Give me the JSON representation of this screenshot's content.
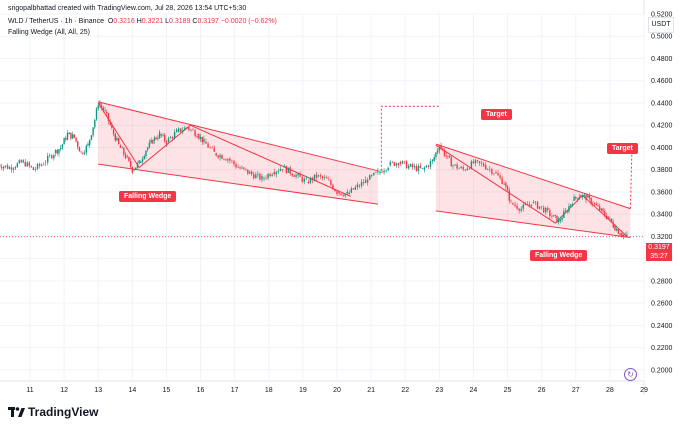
{
  "header": {
    "caption": "srigopalbhattad created with TradingView.com, Jul 28, 2026 13:54 UTC+5:30",
    "symbol": "WLD / TetherUS · 1h · Binance",
    "o_label": "O",
    "o_value": "0.3216",
    "h_label": "H",
    "h_value": "0.3221",
    "l_label": "L",
    "l_value": "0.3189",
    "c_label": "C",
    "c_value": "0.3197",
    "change": "−0.0020 (−0.62%)",
    "indicator": "Falling Wedge (All, All, 25)"
  },
  "currency": "USDT",
  "price_badge": {
    "price": "0.3197",
    "countdown": "35:27"
  },
  "labels": {
    "wedge1": "Falling Wedge",
    "wedge2": "Falling Wedge",
    "target1": "Target",
    "target2": "Target"
  },
  "brand": "TradingView",
  "colors": {
    "up": "#089981",
    "down": "#f23645",
    "wedge_fill": "#f23645",
    "grid": "#f0f3fa"
  },
  "chart_data": {
    "type": "candlestick",
    "title": "WLD / TetherUS · 1h · Binance",
    "xlabel": "",
    "ylabel": "",
    "ylim": [
      0.19,
      0.52
    ],
    "y_ticks": [
      0.2,
      0.22,
      0.24,
      0.26,
      0.28,
      0.3,
      0.32,
      0.34,
      0.36,
      0.38,
      0.4,
      0.42,
      0.44,
      0.46,
      0.48,
      0.5,
      0.52
    ],
    "y_tick_labels": [
      "0.2000",
      "0.2200",
      "0.2400",
      "0.2600",
      "0.2800",
      "0.3000",
      "0.3200",
      "0.3400",
      "0.3600",
      "0.3800",
      "0.4000",
      "0.4200",
      "0.4400",
      "0.4600",
      "0.4800",
      "0.5000",
      "0.5200"
    ],
    "x_ticks": [
      "11",
      "12",
      "13",
      "14",
      "15",
      "16",
      "17",
      "18",
      "19",
      "20",
      "21",
      "22",
      "23",
      "24",
      "25",
      "26",
      "27",
      "28",
      "29"
    ],
    "grid": true,
    "price_series": [
      [
        10.0,
        0.385
      ],
      [
        10.4,
        0.382
      ],
      [
        10.8,
        0.387
      ],
      [
        11.1,
        0.38
      ],
      [
        11.4,
        0.386
      ],
      [
        11.7,
        0.395
      ],
      [
        11.9,
        0.4
      ],
      [
        12.1,
        0.412
      ],
      [
        12.3,
        0.409
      ],
      [
        12.5,
        0.395
      ],
      [
        12.7,
        0.402
      ],
      [
        12.9,
        0.425
      ],
      [
        13.0,
        0.44
      ],
      [
        13.2,
        0.432
      ],
      [
        13.4,
        0.416
      ],
      [
        13.6,
        0.402
      ],
      [
        13.8,
        0.392
      ],
      [
        14.0,
        0.38
      ],
      [
        14.2,
        0.386
      ],
      [
        14.4,
        0.398
      ],
      [
        14.6,
        0.406
      ],
      [
        14.8,
        0.412
      ],
      [
        15.0,
        0.405
      ],
      [
        15.3,
        0.414
      ],
      [
        15.6,
        0.418
      ],
      [
        15.9,
        0.412
      ],
      [
        16.1,
        0.405
      ],
      [
        16.4,
        0.395
      ],
      [
        16.8,
        0.39
      ],
      [
        17.1,
        0.382
      ],
      [
        17.5,
        0.376
      ],
      [
        17.8,
        0.372
      ],
      [
        18.1,
        0.378
      ],
      [
        18.4,
        0.382
      ],
      [
        18.8,
        0.375
      ],
      [
        19.1,
        0.369
      ],
      [
        19.4,
        0.374
      ],
      [
        19.7,
        0.371
      ],
      [
        20.0,
        0.36
      ],
      [
        20.3,
        0.358
      ],
      [
        20.6,
        0.365
      ],
      [
        20.9,
        0.371
      ],
      [
        21.2,
        0.377
      ],
      [
        21.5,
        0.384
      ],
      [
        21.8,
        0.387
      ],
      [
        22.1,
        0.383
      ],
      [
        22.5,
        0.38
      ],
      [
        22.8,
        0.388
      ],
      [
        23.0,
        0.402
      ],
      [
        23.2,
        0.392
      ],
      [
        23.4,
        0.384
      ],
      [
        23.7,
        0.38
      ],
      [
        24.0,
        0.386
      ],
      [
        24.3,
        0.384
      ],
      [
        24.6,
        0.378
      ],
      [
        24.9,
        0.368
      ],
      [
        25.1,
        0.35
      ],
      [
        25.4,
        0.345
      ],
      [
        25.7,
        0.35
      ],
      [
        26.0,
        0.346
      ],
      [
        26.3,
        0.338
      ],
      [
        26.5,
        0.334
      ],
      [
        26.7,
        0.342
      ],
      [
        26.9,
        0.352
      ],
      [
        27.1,
        0.357
      ],
      [
        27.3,
        0.355
      ],
      [
        27.5,
        0.35
      ],
      [
        27.7,
        0.344
      ],
      [
        27.9,
        0.338
      ],
      [
        28.1,
        0.33
      ],
      [
        28.3,
        0.323
      ],
      [
        28.5,
        0.3197
      ]
    ],
    "wedge1": {
      "upper": [
        [
          13.0,
          0.441
        ],
        [
          21.2,
          0.379
        ]
      ],
      "lower": [
        [
          13.0,
          0.385
        ],
        [
          21.2,
          0.349
        ]
      ]
    },
    "wedge2": {
      "upper": [
        [
          22.9,
          0.403
        ],
        [
          28.6,
          0.345
        ]
      ],
      "lower": [
        [
          22.9,
          0.343
        ],
        [
          28.6,
          0.319
        ]
      ]
    },
    "target1": {
      "from": [
        21.3,
        0.379
      ],
      "to": [
        23.0,
        0.437
      ]
    },
    "target2": {
      "from": [
        28.6,
        0.345
      ],
      "to": [
        28.65,
        0.402
      ]
    },
    "last_price": 0.3197
  }
}
